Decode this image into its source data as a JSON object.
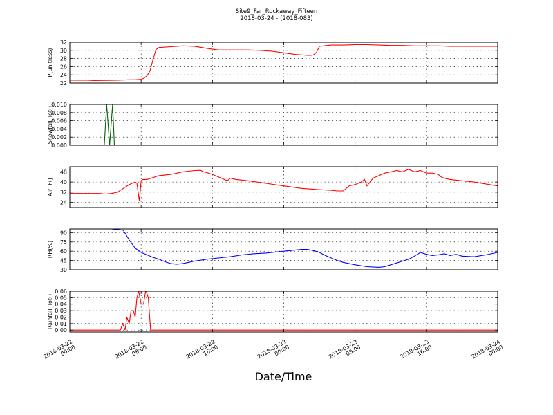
{
  "figure": {
    "title_line1": "Site9_Far_Rockaway_Fifteen",
    "title_line2": "2018-03-24 - (2018-083)",
    "xlabel": "Date/Time"
  },
  "chart_data": [
    {
      "type": "line",
      "ylabel": "P(unitless)",
      "ylim": [
        22,
        32
      ],
      "yticks": [
        "22",
        "24",
        "26",
        "28",
        "30",
        "32"
      ],
      "ytick_values": [
        22,
        24,
        26,
        28,
        30,
        32
      ],
      "grid": true,
      "series": [
        {
          "color": "#ff0000",
          "x_hours": [
            0,
            3,
            4,
            8,
            10,
            11,
            12,
            12.5,
            13,
            13.5,
            14,
            14.5,
            15,
            17,
            19,
            21,
            23,
            25,
            27,
            30,
            32,
            34,
            36,
            38,
            40,
            40.5,
            41,
            41.5,
            42,
            44,
            46,
            48,
            50,
            52,
            54,
            56,
            58,
            60,
            62,
            64,
            66,
            68,
            70,
            72
          ],
          "values": [
            22.7,
            22.7,
            22.6,
            22.7,
            22.8,
            22.8,
            22.9,
            23.2,
            23.8,
            25,
            27.8,
            30.2,
            30.7,
            30.9,
            31.1,
            31,
            30.5,
            30.1,
            30.1,
            30.1,
            30,
            29.8,
            29.4,
            29,
            28.8,
            28.8,
            28.9,
            29.5,
            31,
            31.3,
            31.3,
            31.4,
            31.4,
            31.3,
            31.2,
            31.2,
            31.1,
            31.1,
            31.1,
            31,
            31,
            31,
            31,
            31
          ]
        }
      ]
    },
    {
      "type": "line",
      "ylabel": "Snowfall_Tot()",
      "ylim": [
        0,
        0.01
      ],
      "yticks": [
        "0.000",
        "0.002",
        "0.004",
        "0.006",
        "0.008",
        "0.010"
      ],
      "ytick_values": [
        0,
        0.002,
        0.004,
        0.006,
        0.008,
        0.01
      ],
      "grid": true,
      "series": [
        {
          "color": "#006400",
          "x_hours": [
            0,
            5.8,
            6.2,
            6.7,
            7.2,
            7.5,
            72
          ],
          "values": [
            0,
            0,
            0.01,
            0,
            0.01,
            0,
            0
          ]
        }
      ]
    },
    {
      "type": "line",
      "ylabel": "AirTF()",
      "ylim": [
        20,
        52
      ],
      "yticks": [
        "24",
        "32",
        "40",
        "48"
      ],
      "ytick_values": [
        24,
        32,
        40,
        48
      ],
      "grid": true,
      "series": [
        {
          "color": "#ff0000",
          "x_hours": [
            0,
            4,
            5,
            6,
            7,
            8,
            9,
            10,
            11,
            11.3,
            11.7,
            12,
            12.3,
            13,
            15,
            17,
            19,
            20,
            21,
            22,
            22.5,
            23,
            24,
            25,
            26,
            26.5,
            27,
            28,
            30,
            33,
            36,
            39,
            42,
            44,
            45,
            46,
            47,
            48,
            48.5,
            49,
            49.3,
            49.6,
            50,
            51,
            52,
            53,
            54,
            54.5,
            55,
            56,
            57,
            58,
            59,
            60,
            61,
            62,
            62.5,
            63,
            64,
            66,
            68,
            70,
            72
          ],
          "values": [
            31,
            31,
            31,
            30.5,
            31,
            32,
            35,
            38,
            40,
            39,
            25,
            41,
            42,
            42,
            45,
            46,
            48,
            48.5,
            49,
            49.2,
            48,
            47.5,
            46,
            44,
            42,
            41,
            43,
            42,
            41,
            39,
            37,
            35,
            34,
            33.5,
            33,
            33,
            37,
            38,
            39,
            40,
            41,
            42,
            37,
            43,
            45,
            47,
            48,
            48.5,
            49,
            48,
            50,
            48,
            49,
            47,
            47,
            46,
            44,
            43,
            42,
            41,
            40,
            38.5,
            37
          ]
        }
      ]
    },
    {
      "type": "line",
      "ylabel": "RH(%)",
      "ylim": [
        30,
        96
      ],
      "yticks": [
        "30",
        "45",
        "60",
        "75",
        "90"
      ],
      "ytick_values": [
        30,
        45,
        60,
        75,
        90
      ],
      "grid": true,
      "series": [
        {
          "color": "#0000ff",
          "x_hours": [
            7,
            8,
            9,
            10,
            11,
            12,
            13,
            14,
            15,
            16,
            17,
            18,
            19,
            20,
            21,
            23,
            25,
            27,
            29,
            31,
            33,
            35,
            37,
            38,
            39,
            40,
            41,
            42,
            43,
            44,
            45,
            46,
            48,
            50,
            52,
            53,
            54,
            55,
            56,
            57,
            58,
            59,
            60,
            61,
            62,
            63,
            64,
            65,
            66,
            68,
            70,
            72
          ],
          "values": [
            96,
            95,
            94,
            78,
            65,
            58,
            54,
            50,
            47,
            43,
            40,
            39,
            40,
            42,
            44,
            47,
            49,
            51,
            54,
            56,
            57,
            59,
            61,
            62,
            63,
            63,
            61,
            58,
            53,
            49,
            45,
            42,
            38,
            35,
            34,
            35,
            38,
            41,
            44,
            47,
            52,
            58,
            55,
            53,
            54,
            56,
            53,
            55,
            52,
            51,
            54,
            58
          ]
        }
      ]
    },
    {
      "type": "line",
      "ylabel": "Rainfall_Tot()",
      "ylim": [
        -0.003,
        0.06
      ],
      "yticks": [
        "0.00",
        "0.01",
        "0.02",
        "0.03",
        "0.04",
        "0.05",
        "0.06"
      ],
      "ytick_values": [
        0,
        0.01,
        0.02,
        0.03,
        0.04,
        0.05,
        0.06
      ],
      "grid": true,
      "series": [
        {
          "color": "#ff0000",
          "x_hours": [
            0,
            8.5,
            8.9,
            9.3,
            9.6,
            10,
            10.3,
            10.7,
            11,
            11.3,
            11.6,
            12,
            12.4,
            12.8,
            13.2,
            13.6,
            14,
            14.5,
            15,
            15.5,
            15.8,
            16,
            72
          ],
          "values": [
            0,
            0,
            0.01,
            0,
            0.02,
            0.01,
            0.03,
            0.03,
            0.02,
            0.05,
            0.06,
            0.04,
            0.04,
            0.062,
            0.05,
            0,
            0,
            0,
            0,
            0,
            0,
            0,
            0
          ]
        }
      ]
    }
  ],
  "x_axis": {
    "range_hours": [
      0,
      72
    ],
    "tick_hours": [
      0,
      12,
      24,
      36,
      48,
      60,
      72
    ],
    "tick_labels": [
      [
        "2018-03-22",
        "00:00"
      ],
      [
        "2018-03-22",
        "08:00"
      ],
      [
        "2018-03-22",
        "16:00"
      ],
      [
        "2018-03-23",
        "00:00"
      ],
      [
        "2018-03-23",
        "08:00"
      ],
      [
        "2018-03-23",
        "16:00"
      ],
      [
        "2018-03-24",
        "00:00"
      ]
    ]
  }
}
